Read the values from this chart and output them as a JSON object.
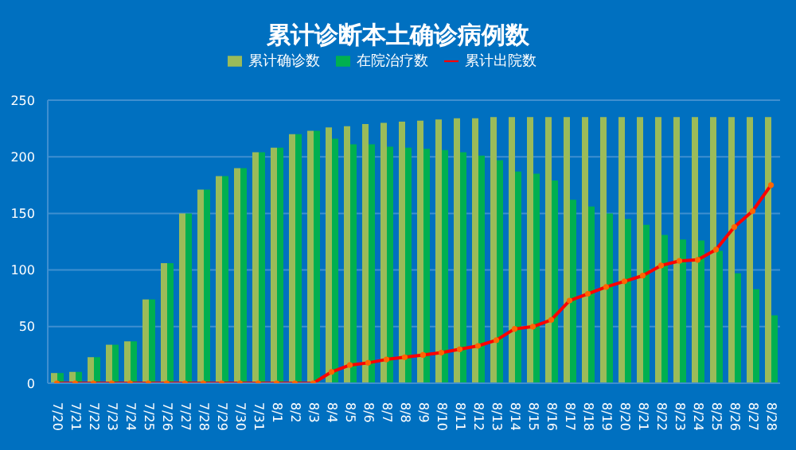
{
  "chart_data": {
    "type": "bar",
    "title": "累计诊断本土确诊病例数",
    "categories": [
      "7/20",
      "7/21",
      "7/22",
      "7/23",
      "7/24",
      "7/25",
      "7/26",
      "7/27",
      "7/28",
      "7/29",
      "7/30",
      "7/31",
      "8/1",
      "8/2",
      "8/3",
      "8/4",
      "8/5",
      "8/6",
      "8/7",
      "8/8",
      "8/9",
      "8/10",
      "8/11",
      "8/12",
      "8/13",
      "8/14",
      "8/15",
      "8/16",
      "8/17",
      "8/18",
      "8/19",
      "8/20",
      "8/21",
      "8/22",
      "8/23",
      "8/24",
      "8/25",
      "8/26",
      "8/27",
      "8/28"
    ],
    "series": [
      {
        "name": "累计确诊数",
        "color": "#9bbb59",
        "values": [
          9,
          10,
          23,
          34,
          37,
          74,
          106,
          150,
          171,
          183,
          190,
          204,
          208,
          220,
          223,
          226,
          227,
          229,
          230,
          231,
          232,
          233,
          234,
          234,
          235,
          235,
          235,
          235,
          235,
          235,
          235,
          235,
          235,
          235,
          235,
          235,
          235,
          235,
          235,
          235
        ]
      },
      {
        "name": "在院治疗数",
        "color": "#00b050",
        "values": [
          9,
          10,
          23,
          34,
          37,
          74,
          106,
          150,
          171,
          183,
          190,
          204,
          208,
          220,
          223,
          216,
          211,
          211,
          209,
          208,
          207,
          206,
          204,
          201,
          197,
          187,
          185,
          179,
          162,
          156,
          150,
          145,
          140,
          131,
          127,
          126,
          117,
          97,
          83,
          60
        ]
      },
      {
        "name": "累计出院数",
        "type": "line",
        "color": "#ff0000",
        "values": [
          0,
          0,
          0,
          0,
          0,
          0,
          0,
          0,
          0,
          0,
          0,
          0,
          0,
          0,
          0,
          10,
          16,
          18,
          21,
          23,
          25,
          27,
          30,
          33,
          38,
          48,
          50,
          56,
          73,
          79,
          85,
          90,
          95,
          104,
          108,
          109,
          118,
          138,
          152,
          175
        ]
      }
    ],
    "ylim": [
      0,
      250
    ],
    "yticks": [
      0,
      50,
      100,
      150,
      200,
      250
    ],
    "grid": "y",
    "legend": "top",
    "marker": "circle",
    "line_style": "solid"
  }
}
